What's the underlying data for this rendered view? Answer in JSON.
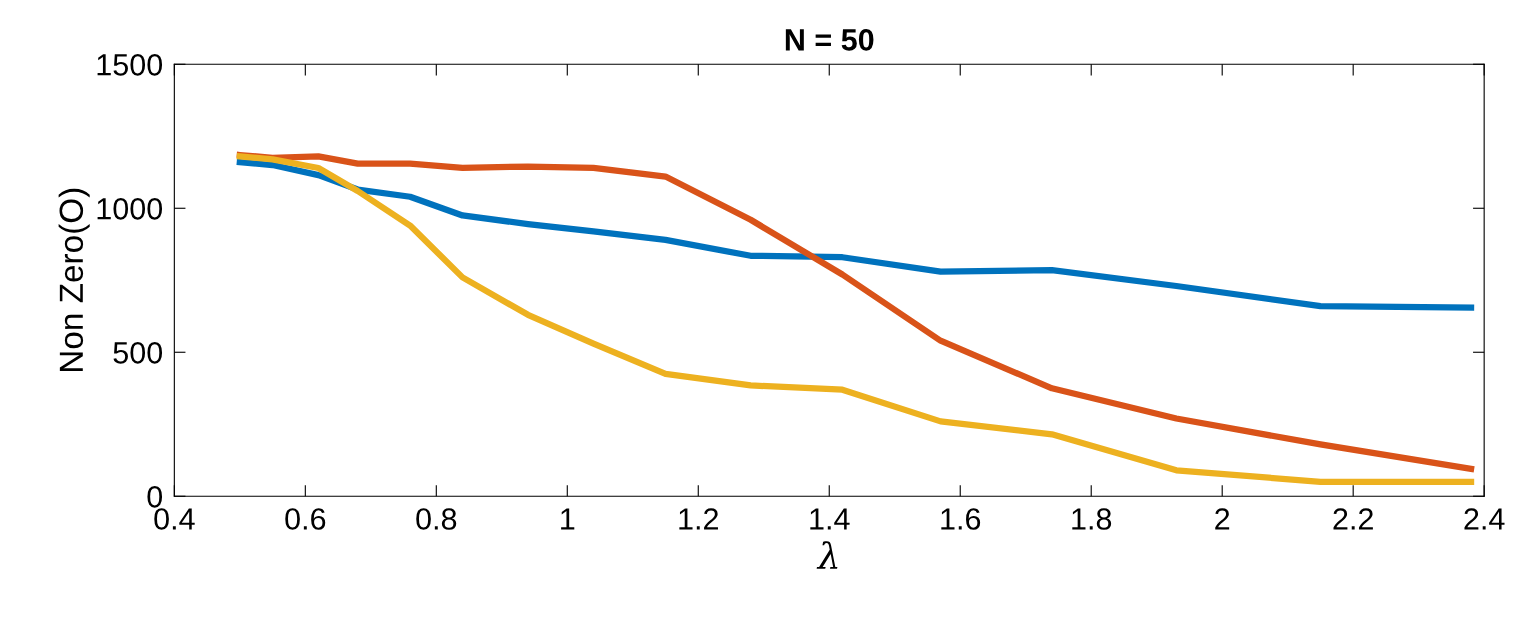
{
  "chart_data": {
    "type": "line",
    "title": "N = 50",
    "xlabel": "λ",
    "ylabel": "Non Zero(O)",
    "x": [
      0.5,
      0.55,
      0.62,
      0.68,
      0.76,
      0.84,
      0.94,
      1.04,
      1.15,
      1.28,
      1.42,
      1.57,
      1.74,
      1.93,
      2.15,
      2.38
    ],
    "series": [
      {
        "color": "#0072bd",
        "values": [
          1160,
          1150,
          1115,
          1065,
          1040,
          975,
          945,
          920,
          890,
          835,
          830,
          780,
          785,
          730,
          660,
          655
        ]
      },
      {
        "color": "#d95319",
        "values": [
          1185,
          1175,
          1180,
          1155,
          1155,
          1140,
          1145,
          1140,
          1110,
          960,
          770,
          540,
          375,
          270,
          180,
          95
        ]
      },
      {
        "color": "#edb120",
        "values": [
          1180,
          1170,
          1140,
          1060,
          940,
          760,
          630,
          530,
          425,
          385,
          370,
          260,
          215,
          90,
          50,
          50
        ]
      }
    ],
    "xlim": [
      0.4,
      2.4
    ],
    "xticks": [
      0.4,
      0.6,
      0.8,
      1,
      1.2,
      1.4,
      1.6,
      1.8,
      2,
      2.2,
      2.4
    ],
    "ylim": [
      0,
      1500
    ],
    "yticks": [
      0,
      500,
      1000,
      1500
    ],
    "grid": false,
    "legend": false,
    "marker": "none",
    "line_style": "solid"
  }
}
